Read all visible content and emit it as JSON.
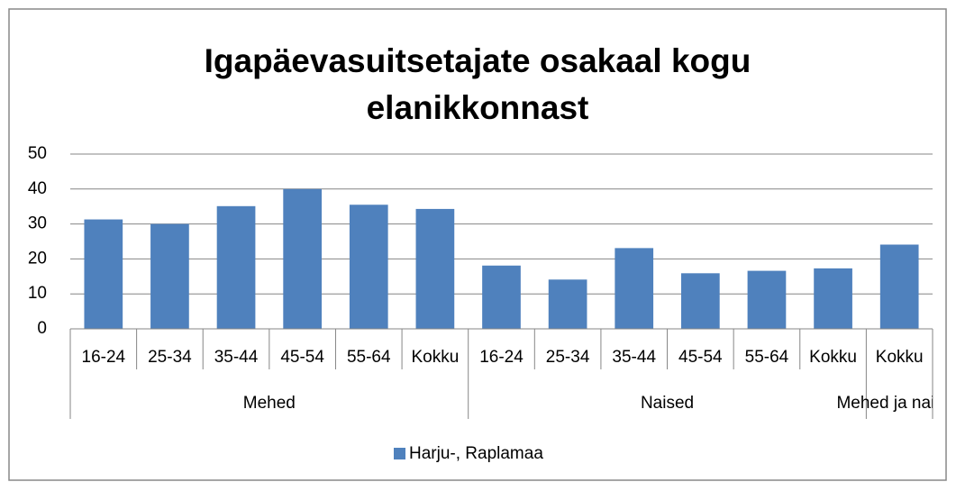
{
  "chart_data": {
    "type": "bar",
    "title": "Igapäevasuitsetajate osakaal kogu elanikkonnast",
    "groups": [
      {
        "name": "Mehed",
        "categories": [
          "16-24",
          "25-34",
          "35-44",
          "45-54",
          "55-64",
          "Kokku"
        ]
      },
      {
        "name": "Naised",
        "categories": [
          "16-24",
          "25-34",
          "35-44",
          "45-54",
          "55-64",
          "Kokku"
        ]
      },
      {
        "name": "Mehed ja naised",
        "categories": [
          "Kokku"
        ]
      }
    ],
    "series": [
      {
        "name": "Harju-, Raplamaa",
        "color": "#4f81bd",
        "values": [
          31.3,
          30,
          35.1,
          40,
          35.5,
          34.3,
          18.1,
          14.1,
          23.1,
          15.9,
          16.6,
          17.3,
          24.1
        ]
      }
    ],
    "ylim": [
      0,
      50
    ],
    "yticks": [
      0,
      10,
      20,
      30,
      40,
      50
    ],
    "grid": true,
    "legend": "bottom"
  }
}
